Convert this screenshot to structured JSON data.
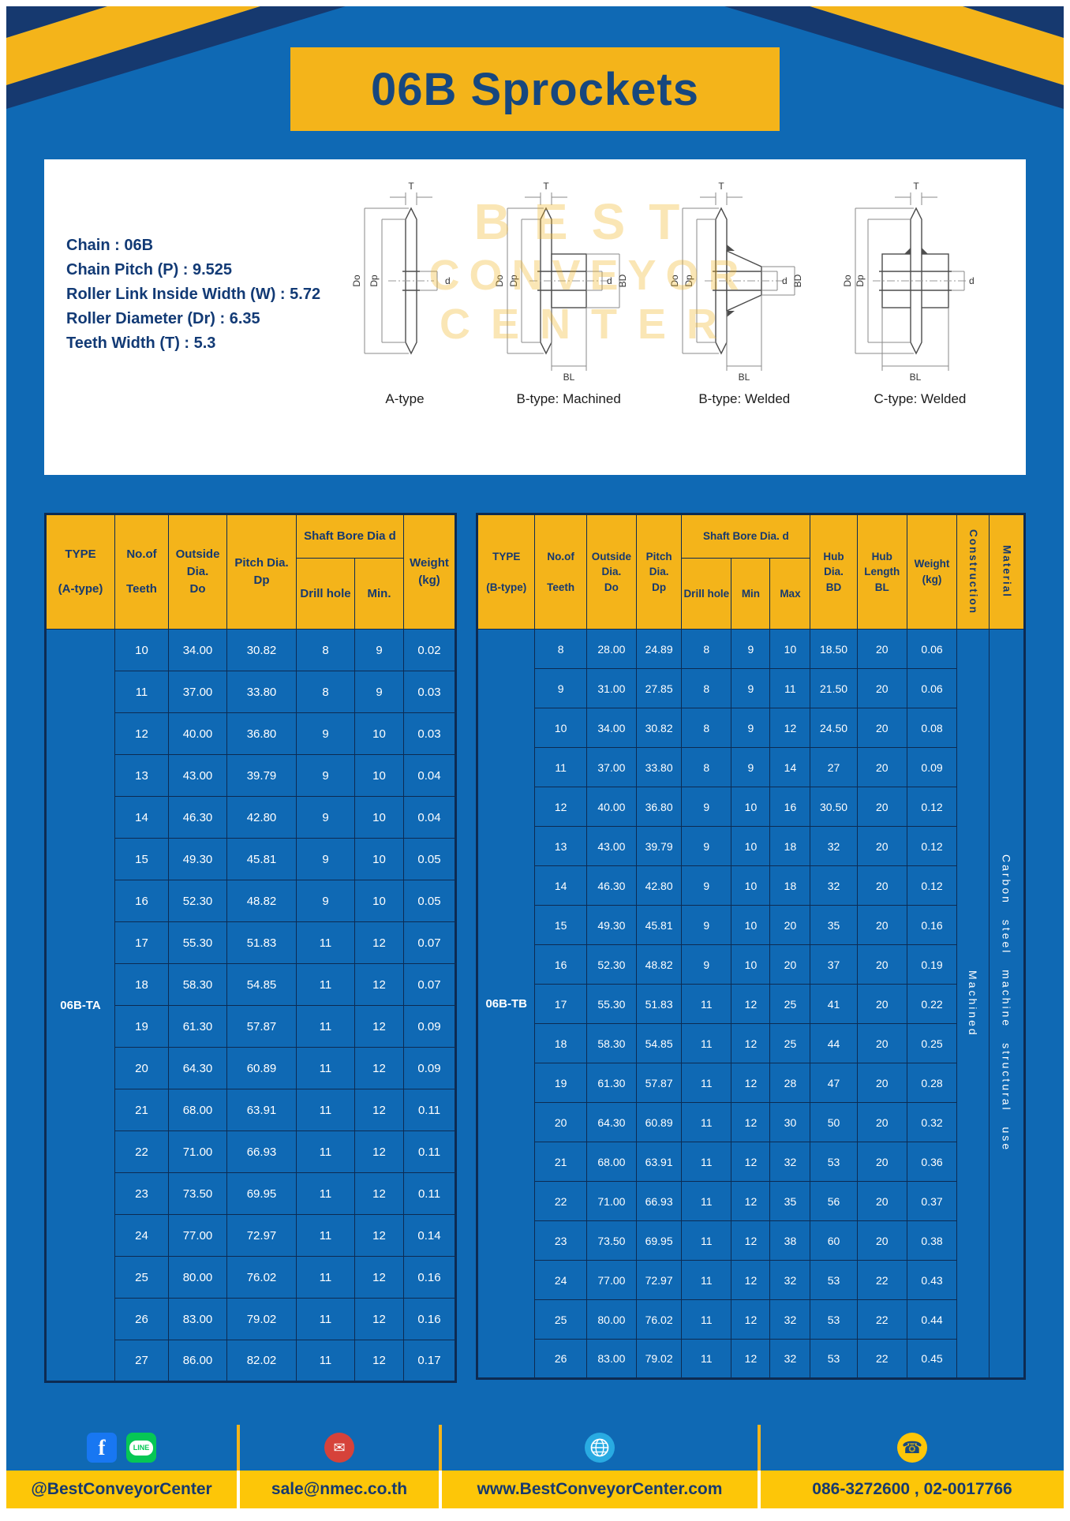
{
  "page": {
    "title": "06B Sprockets"
  },
  "colors": {
    "page_blue": "#0F69B4",
    "accent_yellow": "#F4B41A",
    "navy": "#16396F",
    "footer_yellow": "#FDC608"
  },
  "specs": {
    "lines": [
      "Chain : 06B",
      "Chain Pitch (P) : 9.525",
      "Roller Link Inside Width (W) : 5.72",
      "Roller Diameter (Dr) : 6.35",
      "Teeth Width (T) : 5.3"
    ]
  },
  "drawings": {
    "captions": [
      "A-type",
      "B-type: Machined",
      "B-type: Welded",
      "C-type: Welded"
    ],
    "labels": {
      "T": "T",
      "Do": "Do",
      "Dp": "Dp",
      "d": "d",
      "BD": "BD",
      "BL": "BL"
    }
  },
  "watermark": {
    "line1": "BEST",
    "line2": "CONVEYOR",
    "line3": "CENTER"
  },
  "tableA": {
    "head": {
      "type": "TYPE\n\n(A-type)",
      "teeth": "No.of\n\nTeeth",
      "outside": "Outside\nDia.\nDo",
      "pitch": "Pitch Dia.\nDp",
      "bore": "Shaft Bore Dia d",
      "drill": "Drill hole",
      "min": "Min.",
      "weight": "Weight\n(kg)"
    },
    "type_value": "06B-TA",
    "rows": [
      [
        "10",
        "34.00",
        "30.82",
        "8",
        "9",
        "0.02"
      ],
      [
        "11",
        "37.00",
        "33.80",
        "8",
        "9",
        "0.03"
      ],
      [
        "12",
        "40.00",
        "36.80",
        "9",
        "10",
        "0.03"
      ],
      [
        "13",
        "43.00",
        "39.79",
        "9",
        "10",
        "0.04"
      ],
      [
        "14",
        "46.30",
        "42.80",
        "9",
        "10",
        "0.04"
      ],
      [
        "15",
        "49.30",
        "45.81",
        "9",
        "10",
        "0.05"
      ],
      [
        "16",
        "52.30",
        "48.82",
        "9",
        "10",
        "0.05"
      ],
      [
        "17",
        "55.30",
        "51.83",
        "11",
        "12",
        "0.07"
      ],
      [
        "18",
        "58.30",
        "54.85",
        "11",
        "12",
        "0.07"
      ],
      [
        "19",
        "61.30",
        "57.87",
        "11",
        "12",
        "0.09"
      ],
      [
        "20",
        "64.30",
        "60.89",
        "11",
        "12",
        "0.09"
      ],
      [
        "21",
        "68.00",
        "63.91",
        "11",
        "12",
        "0.11"
      ],
      [
        "22",
        "71.00",
        "66.93",
        "11",
        "12",
        "0.11"
      ],
      [
        "23",
        "73.50",
        "69.95",
        "11",
        "12",
        "0.11"
      ],
      [
        "24",
        "77.00",
        "72.97",
        "11",
        "12",
        "0.14"
      ],
      [
        "25",
        "80.00",
        "76.02",
        "11",
        "12",
        "0.16"
      ],
      [
        "26",
        "83.00",
        "79.02",
        "11",
        "12",
        "0.16"
      ],
      [
        "27",
        "86.00",
        "82.02",
        "11",
        "12",
        "0.17"
      ]
    ]
  },
  "tableB": {
    "head": {
      "type": "TYPE\n\n(B-type)",
      "teeth": "No.of\n\nTeeth",
      "outside": "Outside\nDia.\nDo",
      "pitch": "Pitch\nDia.\nDp",
      "bore": "Shaft Bore Dia.  d",
      "drill": "Drill hole",
      "min": "Min",
      "max": "Max",
      "hubdia": "Hub\nDia.\nBD",
      "hublen": "Hub\nLength\nBL",
      "weight": "Weight\n(kg)",
      "construction": "Construction",
      "material": "Material"
    },
    "type_value": "06B-TB",
    "tail": [
      {
        "name": "construction-value",
        "text": "Machined"
      },
      {
        "name": "material-value",
        "text": "Carbon steel machine structural use"
      }
    ],
    "rows": [
      [
        "8",
        "28.00",
        "24.89",
        "8",
        "9",
        "10",
        "18.50",
        "20",
        "0.06"
      ],
      [
        "9",
        "31.00",
        "27.85",
        "8",
        "9",
        "11",
        "21.50",
        "20",
        "0.06"
      ],
      [
        "10",
        "34.00",
        "30.82",
        "8",
        "9",
        "12",
        "24.50",
        "20",
        "0.08"
      ],
      [
        "11",
        "37.00",
        "33.80",
        "8",
        "9",
        "14",
        "27",
        "20",
        "0.09"
      ],
      [
        "12",
        "40.00",
        "36.80",
        "9",
        "10",
        "16",
        "30.50",
        "20",
        "0.12"
      ],
      [
        "13",
        "43.00",
        "39.79",
        "9",
        "10",
        "18",
        "32",
        "20",
        "0.12"
      ],
      [
        "14",
        "46.30",
        "42.80",
        "9",
        "10",
        "18",
        "32",
        "20",
        "0.12"
      ],
      [
        "15",
        "49.30",
        "45.81",
        "9",
        "10",
        "20",
        "35",
        "20",
        "0.16"
      ],
      [
        "16",
        "52.30",
        "48.82",
        "9",
        "10",
        "20",
        "37",
        "20",
        "0.19"
      ],
      [
        "17",
        "55.30",
        "51.83",
        "11",
        "12",
        "25",
        "41",
        "20",
        "0.22"
      ],
      [
        "18",
        "58.30",
        "54.85",
        "11",
        "12",
        "25",
        "44",
        "20",
        "0.25"
      ],
      [
        "19",
        "61.30",
        "57.87",
        "11",
        "12",
        "28",
        "47",
        "20",
        "0.28"
      ],
      [
        "20",
        "64.30",
        "60.89",
        "11",
        "12",
        "30",
        "50",
        "20",
        "0.32"
      ],
      [
        "21",
        "68.00",
        "63.91",
        "11",
        "12",
        "32",
        "53",
        "20",
        "0.36"
      ],
      [
        "22",
        "71.00",
        "66.93",
        "11",
        "12",
        "35",
        "56",
        "20",
        "0.37"
      ],
      [
        "23",
        "73.50",
        "69.95",
        "11",
        "12",
        "38",
        "60",
        "20",
        "0.38"
      ],
      [
        "24",
        "77.00",
        "72.97",
        "11",
        "12",
        "32",
        "53",
        "22",
        "0.43"
      ],
      [
        "25",
        "80.00",
        "76.02",
        "11",
        "12",
        "32",
        "53",
        "22",
        "0.44"
      ],
      [
        "26",
        "83.00",
        "79.02",
        "11",
        "12",
        "32",
        "53",
        "22",
        "0.45"
      ]
    ]
  },
  "footer": {
    "sections": [
      {
        "label": "@BestConveyorCenter"
      },
      {
        "label": "sale@nmec.co.th"
      },
      {
        "label": "www.BestConveyorCenter.com"
      },
      {
        "label": "086-3272600 , 02-0017766"
      }
    ],
    "icons": {
      "facebook": "f",
      "line": "LINE",
      "email": "✉",
      "phone": "☎"
    }
  }
}
